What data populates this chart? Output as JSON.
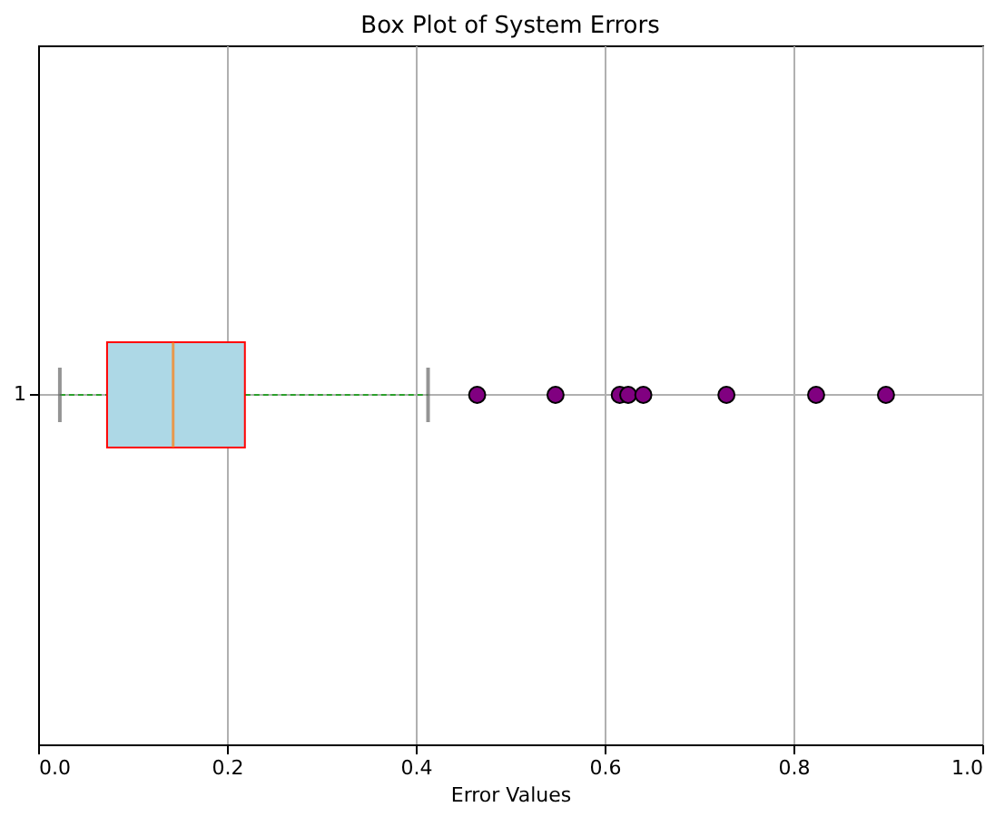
{
  "chart_data": {
    "type": "box",
    "title": "Box Plot of System Errors",
    "xlabel": "Error Values",
    "orientation": "horizontal",
    "categories": [
      "1"
    ],
    "color": "#add8e6",
    "boxes": [
      {
        "low": 0.023,
        "q1": 0.073,
        "median": 0.143,
        "q3": 0.219,
        "high": 0.413,
        "outliers": [
          0.465,
          0.548,
          0.616,
          0.625,
          0.641,
          0.729,
          0.824,
          0.898
        ]
      }
    ],
    "xlim": [
      0,
      1
    ],
    "xticks": [
      {
        "value": 0,
        "label": "0.0"
      },
      0.2,
      0.4,
      0.6,
      0.8,
      {
        "value": 1,
        "label": "1.0"
      }
    ],
    "grid": true
  }
}
